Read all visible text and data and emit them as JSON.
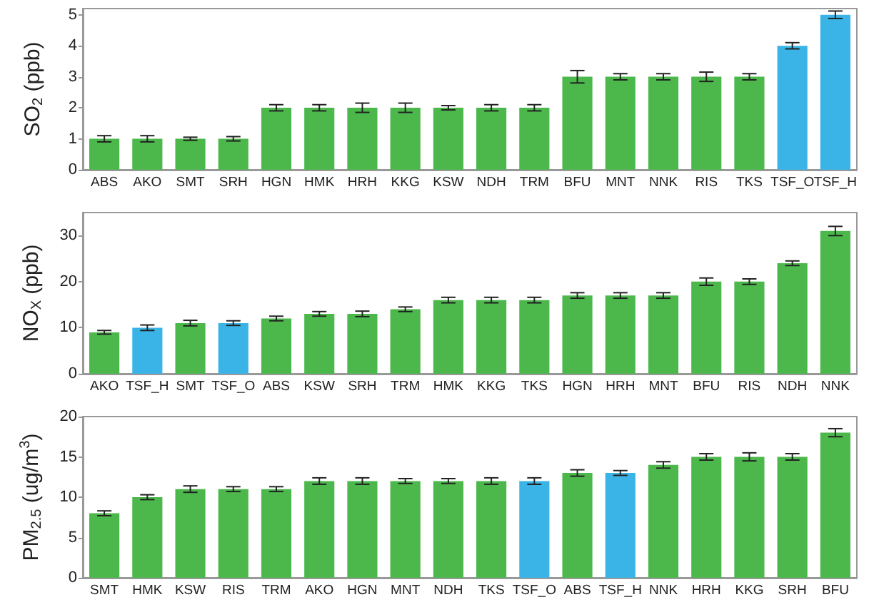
{
  "chart_data": [
    {
      "type": "bar",
      "ylabel": "SO$_{2}$ (ppb)",
      "categories": [
        "ABS",
        "AKO",
        "SMT",
        "SRH",
        "HGN",
        "HMK",
        "HRH",
        "KKG",
        "KSW",
        "NDH",
        "TRM",
        "BFU",
        "MNT",
        "NNK",
        "RIS",
        "TKS",
        "TSF_O",
        "TSF_H"
      ],
      "values": [
        1,
        1,
        1,
        1,
        2,
        2,
        2,
        2,
        2,
        2,
        2,
        3,
        3,
        3,
        3,
        3,
        4,
        5
      ],
      "errors": [
        0.1,
        0.1,
        0.05,
        0.07,
        0.1,
        0.1,
        0.15,
        0.15,
        0.07,
        0.1,
        0.1,
        0.2,
        0.1,
        0.1,
        0.15,
        0.1,
        0.1,
        0.12
      ],
      "colors": [
        "#4cb84c",
        "#4cb84c",
        "#4cb84c",
        "#4cb84c",
        "#4cb84c",
        "#4cb84c",
        "#4cb84c",
        "#4cb84c",
        "#4cb84c",
        "#4cb84c",
        "#4cb84c",
        "#4cb84c",
        "#4cb84c",
        "#4cb84c",
        "#4cb84c",
        "#4cb84c",
        "#3ab4e6",
        "#3ab4e6"
      ],
      "ylim": [
        0,
        5.2
      ],
      "yticks": [
        0,
        1,
        2,
        3,
        4,
        5
      ],
      "grid": false
    },
    {
      "type": "bar",
      "ylabel": "NO$_{X}$ (ppb)",
      "categories": [
        "AKO",
        "TSF_H",
        "SMT",
        "TSF_O",
        "ABS",
        "KSW",
        "SRH",
        "TRM",
        "HMK",
        "KKG",
        "TKS",
        "HGN",
        "HRH",
        "MNT",
        "BFU",
        "RIS",
        "NDH",
        "NNK"
      ],
      "values": [
        9,
        10,
        11,
        11,
        12,
        13,
        13,
        14,
        16,
        16,
        16,
        17,
        17,
        17,
        20,
        20,
        24,
        31
      ],
      "errors": [
        0.4,
        0.6,
        0.6,
        0.5,
        0.5,
        0.5,
        0.6,
        0.5,
        0.6,
        0.6,
        0.6,
        0.6,
        0.6,
        0.6,
        0.8,
        0.6,
        0.5,
        1
      ],
      "colors": [
        "#4cb84c",
        "#3ab4e6",
        "#4cb84c",
        "#3ab4e6",
        "#4cb84c",
        "#4cb84c",
        "#4cb84c",
        "#4cb84c",
        "#4cb84c",
        "#4cb84c",
        "#4cb84c",
        "#4cb84c",
        "#4cb84c",
        "#4cb84c",
        "#4cb84c",
        "#4cb84c",
        "#4cb84c",
        "#4cb84c"
      ],
      "ylim": [
        0,
        35
      ],
      "yticks": [
        0,
        10,
        20,
        30
      ],
      "grid": false
    },
    {
      "type": "bar",
      "ylabel": "PM$_{2.5}$ (ug/m$^{3}$)",
      "categories": [
        "SMT",
        "HMK",
        "KSW",
        "RIS",
        "TRM",
        "AKO",
        "HGN",
        "MNT",
        "NDH",
        "TKS",
        "TSF_O",
        "ABS",
        "TSF_H",
        "NNK",
        "HRH",
        "KKG",
        "SRH",
        "BFU"
      ],
      "values": [
        8,
        10,
        11,
        11,
        11,
        12,
        12,
        12,
        12,
        12,
        12,
        13,
        13,
        14,
        15,
        15,
        15,
        18
      ],
      "errors": [
        0.3,
        0.3,
        0.4,
        0.3,
        0.3,
        0.4,
        0.4,
        0.3,
        0.3,
        0.4,
        0.4,
        0.4,
        0.3,
        0.4,
        0.4,
        0.5,
        0.4,
        0.5
      ],
      "colors": [
        "#4cb84c",
        "#4cb84c",
        "#4cb84c",
        "#4cb84c",
        "#4cb84c",
        "#4cb84c",
        "#4cb84c",
        "#4cb84c",
        "#4cb84c",
        "#4cb84c",
        "#3ab4e6",
        "#4cb84c",
        "#3ab4e6",
        "#4cb84c",
        "#4cb84c",
        "#4cb84c",
        "#4cb84c",
        "#4cb84c"
      ],
      "ylim": [
        0,
        20
      ],
      "yticks": [
        0,
        5,
        10,
        15,
        20
      ],
      "grid": false
    }
  ]
}
